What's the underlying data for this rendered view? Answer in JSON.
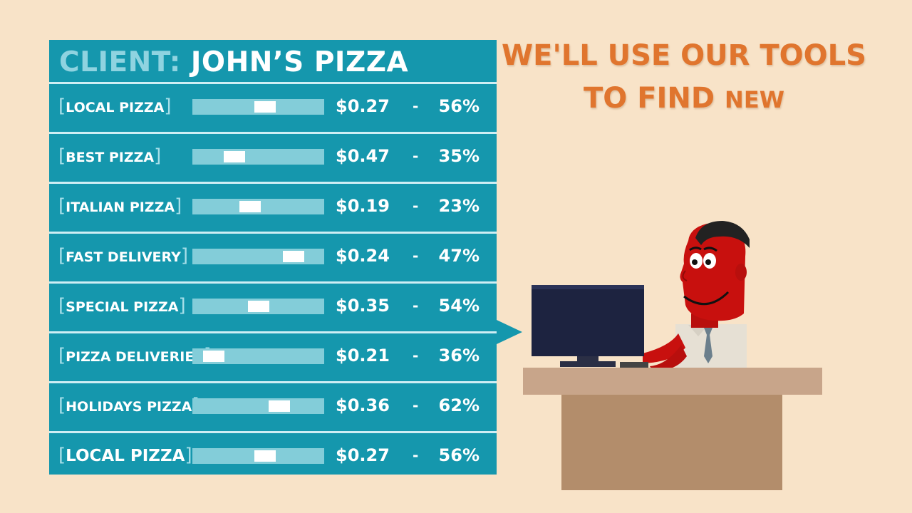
{
  "panel": {
    "title_label": "CLIENT:",
    "title_name": "JOHN’S PIZZA",
    "rows": [
      {
        "keyword": "LOCAL PIZZA",
        "price": "$0.27",
        "dash": "-",
        "percent": "56%",
        "slider_position": 0.55
      },
      {
        "keyword": "BEST PIZZA",
        "price": "$0.47",
        "dash": "-",
        "percent": "35%",
        "slider_position": 0.32
      },
      {
        "keyword": "ITALIAN PIZZA",
        "price": "$0.19",
        "dash": "-",
        "percent": "23%",
        "slider_position": 0.44
      },
      {
        "keyword": "FAST DELIVERY",
        "price": "$0.24",
        "dash": "-",
        "percent": "47%",
        "slider_position": 0.77
      },
      {
        "keyword": "SPECIAL PIZZA",
        "price": "$0.35",
        "dash": "-",
        "percent": "54%",
        "slider_position": 0.5
      },
      {
        "keyword": "PIZZA DELIVERIES",
        "price": "$0.21",
        "dash": "-",
        "percent": "36%",
        "slider_position": 0.16
      },
      {
        "keyword": "HOLIDAYS PIZZA",
        "price": "$0.36",
        "dash": "-",
        "percent": "62%",
        "slider_position": 0.66
      },
      {
        "keyword": "LOCAL PIZZA",
        "price": "$0.27",
        "dash": "-",
        "percent": "56%",
        "slider_position": 0.55
      }
    ]
  },
  "headline": {
    "line1": "WE'LL USE OUR TOOLS",
    "line2_main": "TO FIND",
    "line2_small": "NEW"
  },
  "colors": {
    "background": "#f8e3c8",
    "panel": "#1597ad",
    "headline": "#e0752e",
    "character_skin": "#c8100e",
    "desk_top": "#c8a58a",
    "desk_body": "#b38d6b"
  },
  "icons": {
    "character": "man-at-computer-illustration",
    "monitor": "monitor-icon"
  }
}
